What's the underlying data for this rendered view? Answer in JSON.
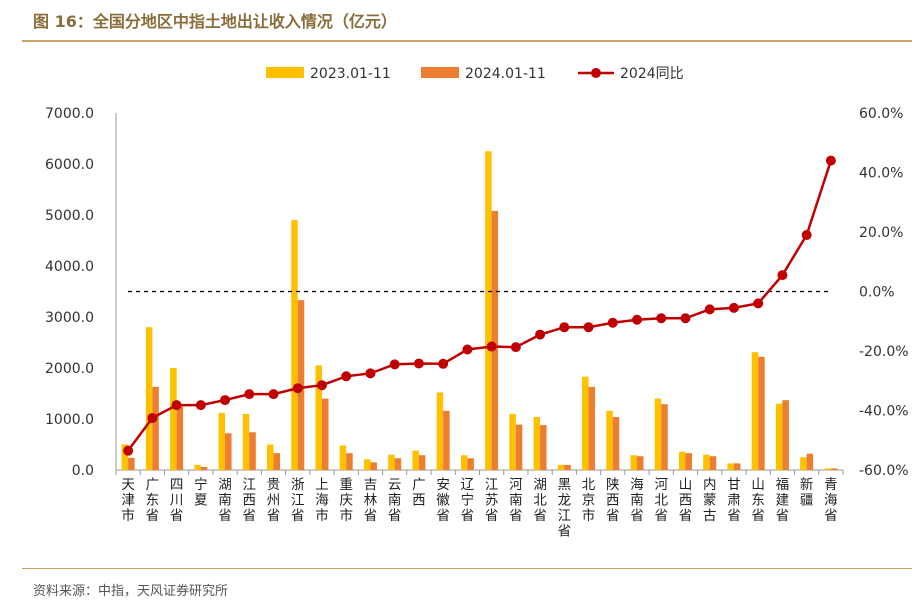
{
  "header": {
    "title": "图 16：全国分地区中指土地出让收入情况（亿元）"
  },
  "footer": {
    "source": "资料来源：中指，天风证券研究所"
  },
  "colors": {
    "series_2023": "#FFC000",
    "series_2024": "#ED7D31",
    "yoy_line": "#C00000",
    "zero_line": "#000000",
    "axis": "#999999",
    "title_text": "#8A6D3B"
  },
  "chart_data": {
    "type": "bar",
    "title": "全国分地区中指土地出让收入情况（亿元）",
    "legend_position": "top-center",
    "categories": [
      "天津市",
      "广东省",
      "四川省",
      "宁夏",
      "湖南省",
      "江西省",
      "贵州省",
      "浙江省",
      "上海市",
      "重庆市",
      "吉林省",
      "云南省",
      "广西",
      "安徽省",
      "辽宁省",
      "江苏省",
      "河南省",
      "湖北省",
      "黑龙江省",
      "北京市",
      "陕西省",
      "海南省",
      "河北省",
      "山西省",
      "内蒙古",
      "甘肃省",
      "山东省",
      "福建省",
      "新疆",
      "青海省"
    ],
    "series": [
      {
        "name": "2023.01-11",
        "type": "bar",
        "axis": "left",
        "values": [
          500,
          2800,
          2000,
          100,
          1120,
          1100,
          500,
          4900,
          2050,
          480,
          210,
          300,
          380,
          1520,
          290,
          6250,
          1100,
          1040,
          100,
          1830,
          1160,
          290,
          1400,
          360,
          300,
          130,
          2310,
          1300,
          250,
          30
        ]
      },
      {
        "name": "2024.01-11",
        "type": "bar",
        "axis": "left",
        "values": [
          240,
          1630,
          1240,
          60,
          720,
          740,
          330,
          3330,
          1400,
          330,
          150,
          230,
          290,
          1160,
          230,
          5080,
          890,
          880,
          100,
          1630,
          1040,
          270,
          1290,
          330,
          270,
          130,
          2220,
          1370,
          320,
          30
        ]
      },
      {
        "name": "2024同比",
        "type": "line",
        "axis": "right",
        "values": [
          -53.5,
          -42.5,
          -38.2,
          -38.2,
          -36.5,
          -34.5,
          -34.5,
          -32.5,
          -31.5,
          -28.5,
          -27.5,
          -24.5,
          -24.2,
          -24.3,
          -19.5,
          -18.5,
          -18.7,
          -14.5,
          -12.0,
          -12.0,
          -10.5,
          -9.5,
          -9.0,
          -9.0,
          -6.0,
          -5.5,
          -4.0,
          5.5,
          19.0,
          44.0
        ]
      }
    ],
    "y_left": {
      "min": 0,
      "max": 7000,
      "step": 1000,
      "tick_labels": [
        "0.0",
        "1000.0",
        "2000.0",
        "3000.0",
        "4000.0",
        "5000.0",
        "6000.0",
        "7000.0"
      ]
    },
    "y_right": {
      "min": -60,
      "max": 60,
      "step": 20,
      "tick_labels": [
        "-60.0%",
        "-40.0%",
        "-20.0%",
        "0.0%",
        "20.0%",
        "40.0%",
        "60.0%"
      ]
    },
    "reference_line": {
      "axis": "right",
      "value": 0,
      "style": "dashed"
    },
    "grid": false,
    "xlabel": "",
    "ylabel": ""
  }
}
